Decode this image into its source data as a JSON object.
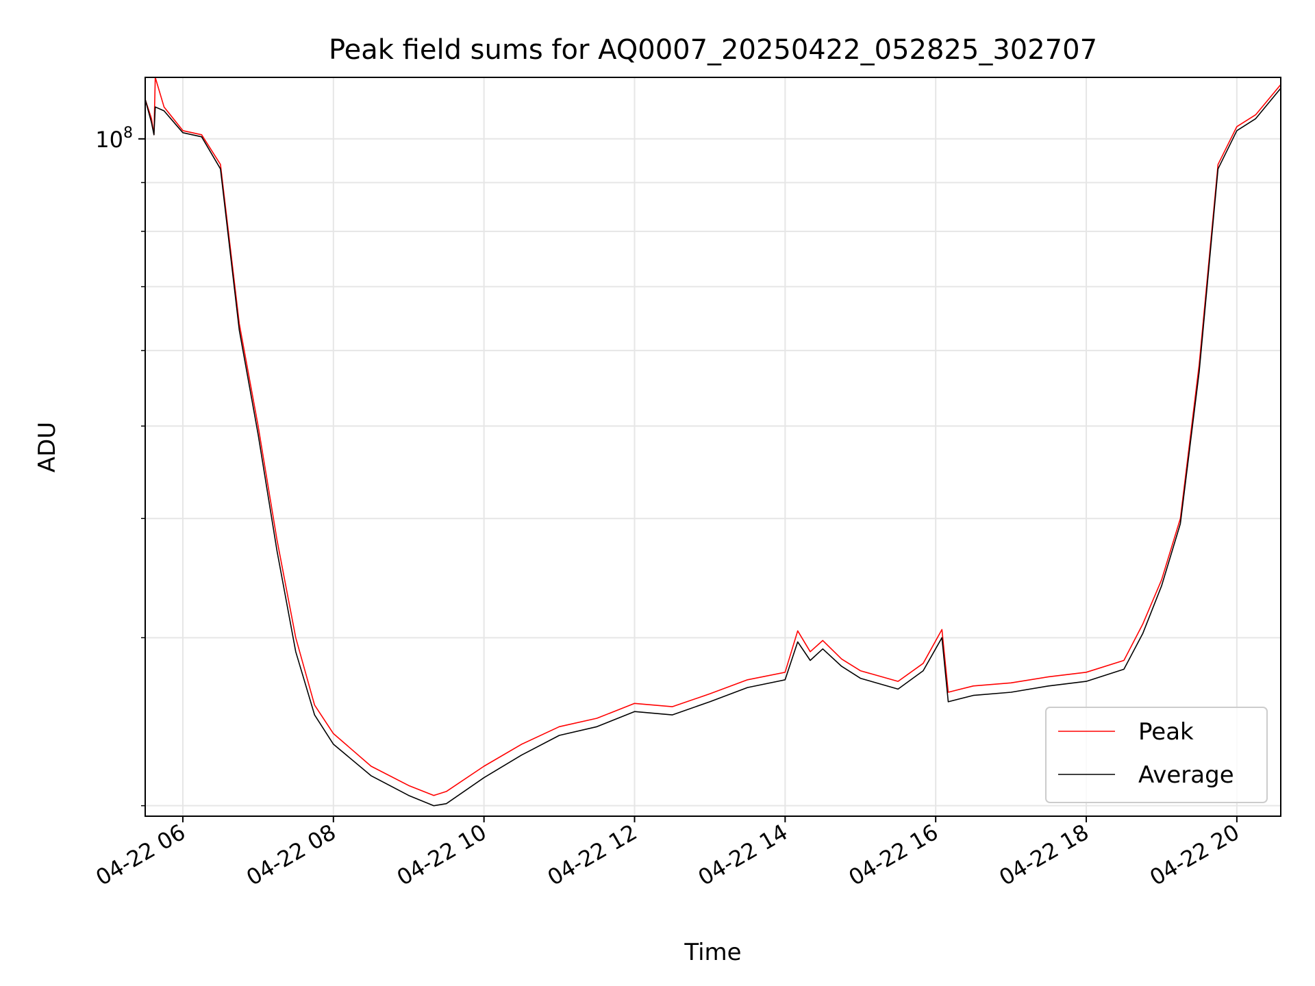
{
  "chart_data": {
    "type": "line",
    "title": "Peak field sums for AQ0007_20250422_052825_302707",
    "xlabel": "Time",
    "ylabel": "ADU",
    "yscale": "log",
    "ylim": [
      19500000,
      116000000
    ],
    "xlim": [
      "2025-04-22 05:30",
      "2025-04-22 20:35"
    ],
    "x_ticks": [
      {
        "x": "2025-04-22 06:00",
        "label": "04-22 06"
      },
      {
        "x": "2025-04-22 08:00",
        "label": "04-22 08"
      },
      {
        "x": "2025-04-22 10:00",
        "label": "04-22 10"
      },
      {
        "x": "2025-04-22 12:00",
        "label": "04-22 12"
      },
      {
        "x": "2025-04-22 14:00",
        "label": "04-22 14"
      },
      {
        "x": "2025-04-22 16:00",
        "label": "04-22 16"
      },
      {
        "x": "2025-04-22 18:00",
        "label": "04-22 18"
      },
      {
        "x": "2025-04-22 20:00",
        "label": "04-22 20"
      }
    ],
    "y_major_ticks": [
      {
        "value": 100000000,
        "label_base": "10",
        "label_exp": "8"
      }
    ],
    "y_minor_ticks": [
      20000000,
      30000000,
      40000000,
      50000000,
      60000000,
      70000000,
      80000000,
      90000000
    ],
    "grid": true,
    "legend_position": "lower-right",
    "colors": {
      "Peak": "#ff0000",
      "Average": "#000000",
      "grid": "#e6e6e6"
    },
    "series": [
      {
        "name": "Peak",
        "x": [
          "2025-04-22 05:30",
          "2025-04-22 05:35",
          "2025-04-22 05:37",
          "2025-04-22 05:38",
          "2025-04-22 05:45",
          "2025-04-22 06:00",
          "2025-04-22 06:15",
          "2025-04-22 06:30",
          "2025-04-22 06:45",
          "2025-04-22 07:00",
          "2025-04-22 07:15",
          "2025-04-22 07:30",
          "2025-04-22 07:45",
          "2025-04-22 08:00",
          "2025-04-22 08:30",
          "2025-04-22 09:00",
          "2025-04-22 09:20",
          "2025-04-22 09:30",
          "2025-04-22 10:00",
          "2025-04-22 10:30",
          "2025-04-22 11:00",
          "2025-04-22 11:30",
          "2025-04-22 12:00",
          "2025-04-22 12:30",
          "2025-04-22 13:00",
          "2025-04-22 13:30",
          "2025-04-22 14:00",
          "2025-04-22 14:10",
          "2025-04-22 14:20",
          "2025-04-22 14:30",
          "2025-04-22 14:45",
          "2025-04-22 15:00",
          "2025-04-22 15:30",
          "2025-04-22 15:50",
          "2025-04-22 16:05",
          "2025-04-22 16:10",
          "2025-04-22 16:30",
          "2025-04-22 17:00",
          "2025-04-22 17:30",
          "2025-04-22 18:00",
          "2025-04-22 18:30",
          "2025-04-22 18:45",
          "2025-04-22 19:00",
          "2025-04-22 19:15",
          "2025-04-22 19:30",
          "2025-04-22 19:45",
          "2025-04-22 20:00",
          "2025-04-22 20:15",
          "2025-04-22 20:35"
        ],
        "values": [
          110000000,
          105000000,
          101000000,
          116000000,
          108000000,
          102000000,
          101000000,
          94000000,
          64000000,
          50000000,
          38000000,
          30000000,
          25500000,
          23800000,
          22000000,
          21000000,
          20500000,
          20700000,
          22000000,
          23200000,
          24200000,
          24700000,
          25600000,
          25400000,
          26200000,
          27100000,
          27600000,
          30500000,
          29000000,
          29800000,
          28500000,
          27700000,
          27000000,
          28200000,
          30600000,
          26300000,
          26700000,
          26900000,
          27300000,
          27600000,
          28400000,
          31000000,
          34500000,
          40000000,
          58000000,
          94000000,
          103000000,
          106000000,
          114000000
        ]
      },
      {
        "name": "Average",
        "x": [
          "2025-04-22 05:30",
          "2025-04-22 05:35",
          "2025-04-22 05:37",
          "2025-04-22 05:38",
          "2025-04-22 05:45",
          "2025-04-22 06:00",
          "2025-04-22 06:15",
          "2025-04-22 06:30",
          "2025-04-22 06:45",
          "2025-04-22 07:00",
          "2025-04-22 07:15",
          "2025-04-22 07:30",
          "2025-04-22 07:45",
          "2025-04-22 08:00",
          "2025-04-22 08:30",
          "2025-04-22 09:00",
          "2025-04-22 09:20",
          "2025-04-22 09:30",
          "2025-04-22 10:00",
          "2025-04-22 10:30",
          "2025-04-22 11:00",
          "2025-04-22 11:30",
          "2025-04-22 12:00",
          "2025-04-22 12:30",
          "2025-04-22 13:00",
          "2025-04-22 13:30",
          "2025-04-22 14:00",
          "2025-04-22 14:10",
          "2025-04-22 14:20",
          "2025-04-22 14:30",
          "2025-04-22 14:45",
          "2025-04-22 15:00",
          "2025-04-22 15:30",
          "2025-04-22 15:50",
          "2025-04-22 16:05",
          "2025-04-22 16:10",
          "2025-04-22 16:30",
          "2025-04-22 17:00",
          "2025-04-22 17:30",
          "2025-04-22 18:00",
          "2025-04-22 18:30",
          "2025-04-22 18:45",
          "2025-04-22 19:00",
          "2025-04-22 19:15",
          "2025-04-22 19:30",
          "2025-04-22 19:45",
          "2025-04-22 20:00",
          "2025-04-22 20:15",
          "2025-04-22 20:35"
        ],
        "values": [
          110000000,
          104000000,
          101000000,
          108000000,
          107000000,
          101500000,
          100500000,
          93000000,
          63000000,
          49000000,
          37000000,
          29000000,
          24900000,
          23200000,
          21500000,
          20500000,
          20000000,
          20100000,
          21400000,
          22600000,
          23700000,
          24200000,
          25100000,
          24900000,
          25700000,
          26600000,
          27100000,
          29700000,
          28400000,
          29200000,
          28000000,
          27200000,
          26500000,
          27700000,
          30000000,
          25700000,
          26100000,
          26300000,
          26700000,
          27000000,
          27800000,
          30300000,
          34000000,
          39500000,
          57000000,
          93000000,
          102000000,
          105000000,
          113000000
        ]
      }
    ]
  }
}
